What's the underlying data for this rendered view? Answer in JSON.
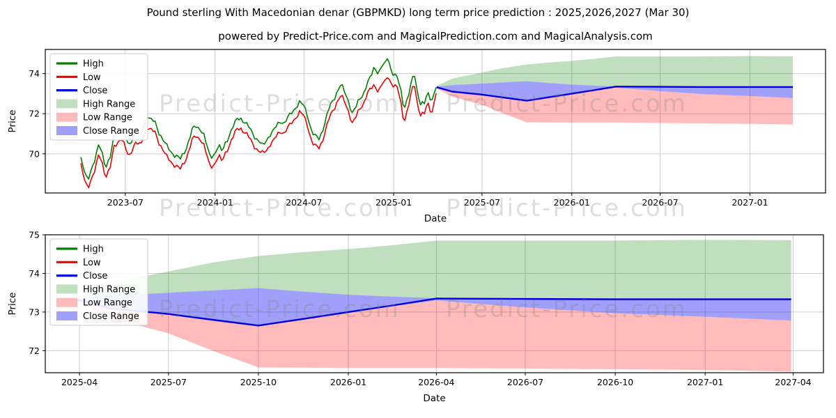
{
  "title": "Pound sterling With Macedonian denar (GBPMKD) long term price prediction : 2025,2026,2027 (Mar 30)",
  "subtitle": "powered by Predict-Price.com and MagicalPrediction.com and MagicalAnalysis.com",
  "watermark": {
    "text": "Predict-Price.com",
    "color": "rgba(128,128,128,0.26)"
  },
  "colors": {
    "high": "#008000",
    "low": "#ee0000",
    "close": "#0000dd",
    "high_range": "rgba(0,128,0,0.25)",
    "low_range": "rgba(255,30,30,0.30)",
    "close_range": "rgba(45,45,245,0.45)",
    "grid": "#cccccc",
    "spine": "#000000",
    "text": "#000000"
  },
  "legend_items": [
    {
      "label": "High",
      "swatch": "line",
      "color": "high"
    },
    {
      "label": "Low",
      "swatch": "line",
      "color": "low"
    },
    {
      "label": "Close",
      "swatch": "line",
      "color": "close"
    },
    {
      "label": "High Range",
      "swatch": "fill",
      "color": "high_range"
    },
    {
      "label": "Low Range",
      "swatch": "fill",
      "color": "low_range"
    },
    {
      "label": "Close Range",
      "swatch": "fill",
      "color": "close_range"
    }
  ],
  "chart_data": [
    {
      "name": "main-chart",
      "type": "line",
      "title": "GBPMKD history 2023-03-30 to 2025-03-30 with prediction to 2027-03-30",
      "xlabel": "Date",
      "ylabel": "Price",
      "x_ticks": [
        "2023-07",
        "2024-01",
        "2024-07",
        "2025-01",
        "2025-07",
        "2026-01",
        "2026-07",
        "2027-01"
      ],
      "y_ticks": [
        70,
        72,
        74
      ],
      "xlim": [
        "2023-01-18",
        "2027-06-05"
      ],
      "ylim": [
        68.05,
        75.2
      ],
      "grid": true,
      "legend_position": "upper-left",
      "history": {
        "series_names": [
          "High",
          "Low"
        ],
        "points": [
          [
            "2023-04-01",
            69.8,
            69.5
          ],
          [
            "2023-04-08",
            69.1,
            68.7
          ],
          [
            "2023-04-15",
            68.7,
            68.3
          ],
          [
            "2023-04-22",
            69.3,
            68.8
          ],
          [
            "2023-05-01",
            69.7,
            69.2
          ],
          [
            "2023-05-08",
            70.4,
            69.9
          ],
          [
            "2023-05-15",
            70.0,
            69.5
          ],
          [
            "2023-05-22",
            69.4,
            68.9
          ],
          [
            "2023-06-01",
            69.9,
            69.4
          ],
          [
            "2023-06-08",
            70.9,
            70.4
          ],
          [
            "2023-06-15",
            71.2,
            70.6
          ],
          [
            "2023-06-22",
            71.35,
            70.8
          ],
          [
            "2023-07-01",
            70.8,
            70.2
          ],
          [
            "2023-07-08",
            70.35,
            69.8
          ],
          [
            "2023-07-15",
            70.8,
            70.3
          ],
          [
            "2023-07-22",
            71.1,
            70.6
          ],
          [
            "2023-08-01",
            70.9,
            70.4
          ],
          [
            "2023-08-08",
            71.5,
            71.0
          ],
          [
            "2023-08-15",
            71.9,
            71.3
          ],
          [
            "2023-08-22",
            71.6,
            71.1
          ],
          [
            "2023-09-01",
            71.5,
            71.0
          ],
          [
            "2023-09-08",
            71.1,
            70.6
          ],
          [
            "2023-09-15",
            70.8,
            70.3
          ],
          [
            "2023-09-22",
            70.45,
            69.9
          ],
          [
            "2023-10-01",
            70.2,
            69.7
          ],
          [
            "2023-10-08",
            70.0,
            69.5
          ],
          [
            "2023-10-15",
            69.8,
            69.3
          ],
          [
            "2023-10-22",
            69.65,
            69.15
          ],
          [
            "2023-11-01",
            70.2,
            69.7
          ],
          [
            "2023-11-08",
            70.7,
            70.2
          ],
          [
            "2023-11-15",
            71.2,
            70.7
          ],
          [
            "2023-11-22",
            71.4,
            70.9
          ],
          [
            "2023-12-01",
            71.3,
            70.8
          ],
          [
            "2023-12-08",
            71.0,
            70.5
          ],
          [
            "2023-12-15",
            70.3,
            69.8
          ],
          [
            "2023-12-22",
            69.8,
            69.3
          ],
          [
            "2024-01-01",
            70.1,
            69.6
          ],
          [
            "2024-01-08",
            70.45,
            69.95
          ],
          [
            "2024-01-15",
            70.1,
            69.6
          ],
          [
            "2024-01-22",
            70.6,
            70.1
          ],
          [
            "2024-02-01",
            71.0,
            70.5
          ],
          [
            "2024-02-08",
            71.3,
            70.8
          ],
          [
            "2024-02-15",
            71.7,
            71.2
          ],
          [
            "2024-02-22",
            71.85,
            71.35
          ],
          [
            "2024-03-01",
            71.6,
            71.1
          ],
          [
            "2024-03-08",
            71.4,
            70.9
          ],
          [
            "2024-03-15",
            71.2,
            70.7
          ],
          [
            "2024-03-22",
            70.9,
            70.4
          ],
          [
            "2024-04-01",
            70.5,
            70.0
          ],
          [
            "2024-04-08",
            70.3,
            69.95
          ],
          [
            "2024-04-15",
            70.7,
            70.2
          ],
          [
            "2024-04-22",
            71.0,
            70.5
          ],
          [
            "2024-05-01",
            71.2,
            70.7
          ],
          [
            "2024-05-08",
            71.5,
            71.0
          ],
          [
            "2024-05-15",
            71.7,
            71.2
          ],
          [
            "2024-05-22",
            71.5,
            71.0
          ],
          [
            "2024-06-01",
            71.8,
            71.3
          ],
          [
            "2024-06-08",
            72.1,
            71.6
          ],
          [
            "2024-06-15",
            72.4,
            71.9
          ],
          [
            "2024-06-22",
            72.6,
            72.1
          ],
          [
            "2024-07-01",
            72.4,
            71.9
          ],
          [
            "2024-07-08",
            72.0,
            71.5
          ],
          [
            "2024-07-15",
            71.3,
            70.8
          ],
          [
            "2024-07-22",
            70.8,
            70.3
          ],
          [
            "2024-08-01",
            70.7,
            70.25
          ],
          [
            "2024-08-08",
            71.2,
            70.7
          ],
          [
            "2024-08-15",
            71.8,
            71.3
          ],
          [
            "2024-08-22",
            72.3,
            71.8
          ],
          [
            "2024-09-01",
            72.8,
            72.3
          ],
          [
            "2024-09-08",
            73.2,
            72.7
          ],
          [
            "2024-09-15",
            73.4,
            72.85
          ],
          [
            "2024-09-22",
            73.0,
            72.5
          ],
          [
            "2024-10-01",
            72.6,
            72.1
          ],
          [
            "2024-10-08",
            72.1,
            71.6
          ],
          [
            "2024-10-15",
            72.3,
            71.8
          ],
          [
            "2024-10-22",
            72.7,
            72.2
          ],
          [
            "2024-11-01",
            73.1,
            72.6
          ],
          [
            "2024-11-08",
            73.5,
            73.0
          ],
          [
            "2024-11-15",
            73.7,
            73.1
          ],
          [
            "2024-11-22",
            74.3,
            73.4
          ],
          [
            "2024-12-01",
            74.1,
            73.2
          ],
          [
            "2024-12-08",
            74.4,
            73.5
          ],
          [
            "2024-12-15",
            74.5,
            73.6
          ],
          [
            "2024-12-20",
            74.9,
            73.95
          ],
          [
            "2024-12-28",
            74.1,
            73.5
          ],
          [
            "2025-01-08",
            73.7,
            73.2
          ],
          [
            "2025-01-15",
            73.2,
            72.6
          ],
          [
            "2025-01-22",
            72.3,
            71.6
          ],
          [
            "2025-02-01",
            73.0,
            72.5
          ],
          [
            "2025-02-08",
            73.7,
            73.2
          ],
          [
            "2025-02-12",
            74.1,
            73.6
          ],
          [
            "2025-02-18",
            73.2,
            72.6
          ],
          [
            "2025-02-25",
            72.5,
            71.95
          ],
          [
            "2025-03-05",
            72.4,
            71.9
          ],
          [
            "2025-03-12",
            73.0,
            72.5
          ],
          [
            "2025-03-20",
            72.7,
            72.05
          ],
          [
            "2025-03-30",
            73.45,
            73.2
          ]
        ]
      },
      "prediction": {
        "dates": [
          "2025-03-30",
          "2025-05-01",
          "2025-07-01",
          "2025-08-15",
          "2025-10-01",
          "2025-11-15",
          "2026-01-01",
          "2026-02-15",
          "2026-04-01",
          "2026-07-01",
          "2026-10-01",
          "2027-01-01",
          "2027-03-30"
        ],
        "close": [
          73.32,
          73.1,
          72.95,
          72.8,
          72.65,
          72.82,
          73.0,
          73.17,
          73.35,
          73.34,
          73.33,
          73.33,
          73.33
        ],
        "close_upper": [
          73.35,
          73.42,
          73.5,
          73.56,
          73.62,
          73.53,
          73.45,
          73.4,
          73.36,
          73.35,
          73.35,
          73.35,
          73.35
        ],
        "close_lower": [
          73.28,
          73.08,
          72.93,
          72.78,
          72.63,
          72.8,
          72.98,
          73.15,
          73.3,
          73.12,
          72.97,
          72.88,
          72.78
        ],
        "high_upper": [
          73.38,
          73.75,
          74.05,
          74.28,
          74.45,
          74.55,
          74.63,
          74.73,
          74.85,
          74.85,
          74.85,
          74.87,
          74.86
        ],
        "low_lower": [
          73.25,
          72.85,
          72.45,
          72.0,
          71.57,
          71.56,
          71.55,
          71.55,
          71.55,
          71.54,
          71.52,
          71.5,
          71.46
        ]
      }
    },
    {
      "name": "prediction-chart",
      "type": "area",
      "title": "GBPMKD predicted range 2025-03-30 to 2027-03-30",
      "xlabel": "Date",
      "ylabel": "Price",
      "x_ticks": [
        "2025-04",
        "2025-07",
        "2025-10",
        "2026-01",
        "2026-04",
        "2026-07",
        "2026-10",
        "2027-01",
        "2027-04"
      ],
      "y_ticks": [
        72,
        73,
        74,
        75
      ],
      "xlim": [
        "2025-02-25",
        "2027-05-02"
      ],
      "ylim": [
        71.43,
        75.0
      ],
      "grid": true,
      "legend_position": "upper-left",
      "prediction": {
        "dates": [
          "2025-03-30",
          "2025-05-01",
          "2025-07-01",
          "2025-08-15",
          "2025-10-01",
          "2025-11-15",
          "2026-01-01",
          "2026-02-15",
          "2026-04-01",
          "2026-07-01",
          "2026-10-01",
          "2027-01-01",
          "2027-03-30"
        ],
        "close": [
          73.32,
          73.1,
          72.95,
          72.8,
          72.65,
          72.82,
          73.0,
          73.17,
          73.35,
          73.34,
          73.33,
          73.33,
          73.33
        ],
        "close_upper": [
          73.35,
          73.42,
          73.5,
          73.56,
          73.62,
          73.53,
          73.45,
          73.4,
          73.36,
          73.35,
          73.35,
          73.35,
          73.35
        ],
        "close_lower": [
          73.28,
          73.08,
          72.93,
          72.78,
          72.63,
          72.8,
          72.98,
          73.15,
          73.3,
          73.12,
          72.97,
          72.88,
          72.78
        ],
        "high_upper": [
          73.38,
          73.75,
          74.05,
          74.28,
          74.45,
          74.55,
          74.63,
          74.73,
          74.85,
          74.85,
          74.85,
          74.87,
          74.86
        ],
        "low_lower": [
          73.25,
          72.85,
          72.45,
          72.0,
          71.57,
          71.56,
          71.55,
          71.55,
          71.55,
          71.54,
          71.52,
          71.5,
          71.46
        ]
      }
    }
  ]
}
